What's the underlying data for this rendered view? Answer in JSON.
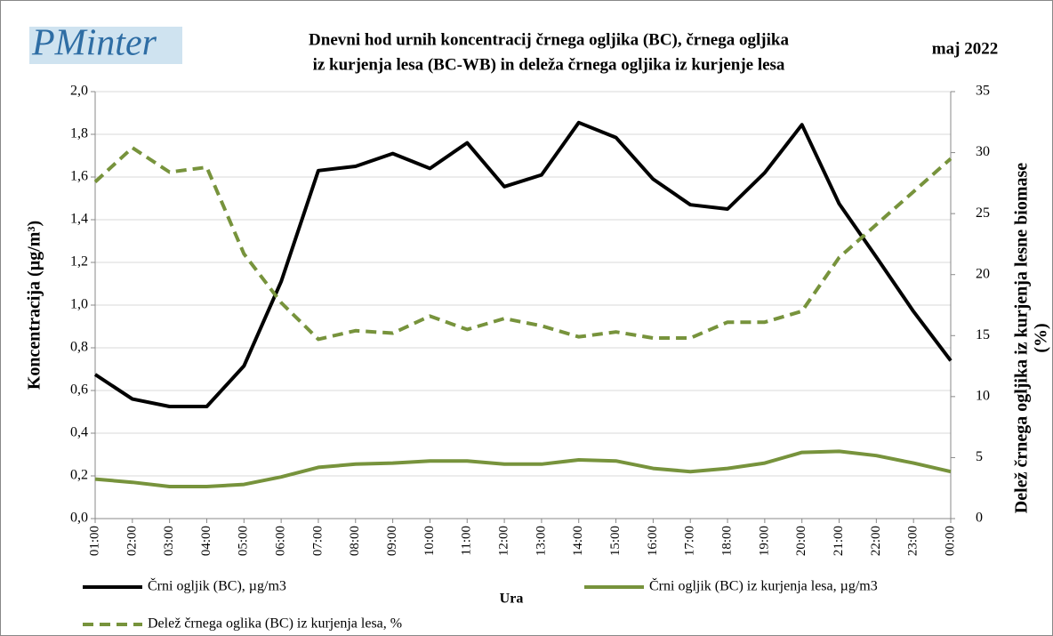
{
  "chart_data": {
    "type": "line",
    "logo": "PMinter",
    "title": [
      "Dnevni hod urnih  koncentracij črnega ogljika (BC), črnega ogljika",
      "iz kurjenja lesa (BC-WB) in deleža črnega ogljika iz kurjenje lesa"
    ],
    "date": "maj 2022",
    "y_label": "Koncentracija  (µg/m³)",
    "y2_label": [
      "Delež črnega ogljika iz kurjenja lesne biomase",
      "(%)"
    ],
    "x_label": "Ura",
    "categories": [
      "01:00",
      "02:00",
      "03:00",
      "04:00",
      "05:00",
      "06:00",
      "07:00",
      "08:00",
      "09:00",
      "10:00",
      "11:00",
      "12:00",
      "13:00",
      "14:00",
      "15:00",
      "16:00",
      "17:00",
      "18:00",
      "19:00",
      "20:00",
      "21:00",
      "22:00",
      "23:00",
      "00:00"
    ],
    "series": [
      {
        "name": "Črni ogljik (BC), µg/m3",
        "color": "#000000",
        "dashed": false,
        "values": [
          0.675,
          0.56,
          0.525,
          0.525,
          0.715,
          1.11,
          1.63,
          1.65,
          1.71,
          1.64,
          1.76,
          1.555,
          1.61,
          1.855,
          1.785,
          1.59,
          1.47,
          1.45,
          1.62,
          1.845,
          1.475,
          1.225,
          0.97,
          0.74
        ]
      },
      {
        "name": "Črni ogljik (BC) iz kurjenja lesa, µg/m3",
        "color": "#77933c",
        "dashed": false,
        "values": [
          0.185,
          0.17,
          0.15,
          0.15,
          0.16,
          0.195,
          0.24,
          0.255,
          0.26,
          0.27,
          0.27,
          0.255,
          0.255,
          0.275,
          0.27,
          0.235,
          0.22,
          0.235,
          0.26,
          0.31,
          0.315,
          0.295,
          0.26,
          0.22
        ]
      },
      {
        "name": "Delež črnega oglika (BC) iz kurjenja lesa, %",
        "color": "#77933c",
        "dashed": true,
        "axis": "y2",
        "values": [
          27.6,
          30.4,
          28.4,
          28.8,
          21.7,
          17.7,
          14.7,
          15.4,
          15.2,
          16.6,
          15.5,
          16.4,
          15.8,
          14.9,
          15.3,
          14.8,
          14.8,
          16.1,
          16.1,
          17.0,
          21.4,
          24.1,
          26.8,
          29.5
        ]
      }
    ],
    "ylim": [
      0,
      2
    ],
    "yticks": [
      {
        "value": 0,
        "label": "0,0"
      },
      {
        "value": 0.2,
        "label": "0,2"
      },
      {
        "value": 0.4,
        "label": "0,4"
      },
      {
        "value": 0.6,
        "label": "0,6"
      },
      {
        "value": 0.8,
        "label": "0,8"
      },
      {
        "value": 1,
        "label": "1,0"
      },
      {
        "value": 1.2,
        "label": "1,2"
      },
      {
        "value": 1.4,
        "label": "1,4"
      },
      {
        "value": 1.6,
        "label": "1,6"
      },
      {
        "value": 1.8,
        "label": "1,8"
      },
      {
        "value": 2,
        "label": "2,0"
      }
    ],
    "y2lim": [
      0,
      35
    ],
    "y2ticks": [
      0,
      5,
      10,
      15,
      20,
      25,
      30,
      35
    ],
    "grid": true
  }
}
